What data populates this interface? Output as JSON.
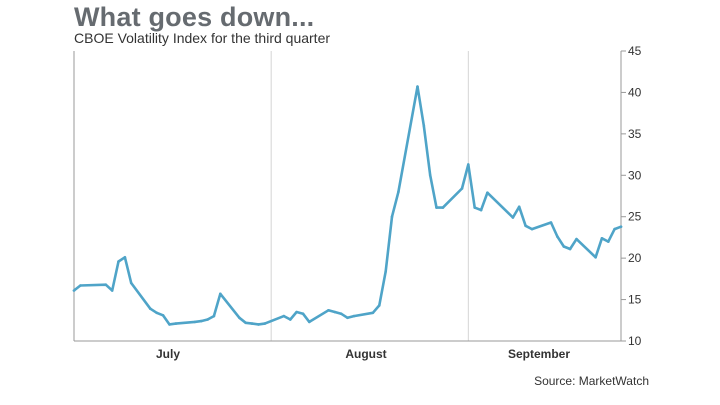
{
  "title": "What goes down...",
  "subtitle": "CBOE Volatility Index for the third quarter",
  "source": "Source: MarketWatch",
  "colors": {
    "line": "#4fa4c8",
    "grid": "#d5d5d5",
    "axis": "#999999"
  },
  "chart_data": {
    "type": "line",
    "title": "What goes down...",
    "subtitle": "CBOE Volatility Index for the third quarter",
    "xlabel": "",
    "ylabel": "",
    "ylim": [
      10,
      45
    ],
    "yticks": [
      10,
      15,
      20,
      25,
      30,
      35,
      40,
      45
    ],
    "y_axis_side": "right",
    "grid": "vertical lines at month boundaries",
    "month_labels": [
      "July",
      "August",
      "September"
    ],
    "x": [
      "2015-07-01",
      "2015-07-02",
      "2015-07-06",
      "2015-07-07",
      "2015-07-08",
      "2015-07-09",
      "2015-07-10",
      "2015-07-13",
      "2015-07-14",
      "2015-07-15",
      "2015-07-16",
      "2015-07-17",
      "2015-07-20",
      "2015-07-21",
      "2015-07-22",
      "2015-07-23",
      "2015-07-24",
      "2015-07-27",
      "2015-07-28",
      "2015-07-29",
      "2015-07-30",
      "2015-07-31",
      "2015-08-03",
      "2015-08-04",
      "2015-08-05",
      "2015-08-06",
      "2015-08-07",
      "2015-08-10",
      "2015-08-11",
      "2015-08-12",
      "2015-08-13",
      "2015-08-14",
      "2015-08-17",
      "2015-08-18",
      "2015-08-19",
      "2015-08-20",
      "2015-08-21",
      "2015-08-24",
      "2015-08-25",
      "2015-08-26",
      "2015-08-27",
      "2015-08-28",
      "2015-08-31",
      "2015-09-01",
      "2015-09-02",
      "2015-09-03",
      "2015-09-04",
      "2015-09-08",
      "2015-09-09",
      "2015-09-10",
      "2015-09-11",
      "2015-09-14",
      "2015-09-15",
      "2015-09-16",
      "2015-09-17",
      "2015-09-18",
      "2015-09-21",
      "2015-09-22",
      "2015-09-23",
      "2015-09-24",
      "2015-09-25"
    ],
    "series": [
      {
        "values": [
          16.1,
          16.7,
          16.8,
          16.1,
          19.6,
          20.1,
          17.0,
          13.9,
          13.4,
          13.1,
          12.0,
          12.1,
          12.3,
          12.4,
          12.6,
          13.0,
          15.7,
          12.8,
          12.2,
          12.1,
          12.0,
          12.1,
          13.0,
          12.6,
          13.5,
          13.3,
          12.3,
          13.7,
          13.5,
          13.3,
          12.8,
          13.0,
          13.4,
          14.3,
          18.4,
          25.0,
          28.0,
          40.7,
          36.0,
          30.0,
          26.1,
          26.1,
          28.4,
          31.3,
          26.1,
          25.8,
          27.9,
          24.9,
          26.2,
          23.9,
          23.5,
          24.3,
          22.6,
          21.4,
          21.1,
          22.3,
          20.1,
          22.4,
          22.0,
          23.5,
          23.8
        ]
      }
    ]
  }
}
